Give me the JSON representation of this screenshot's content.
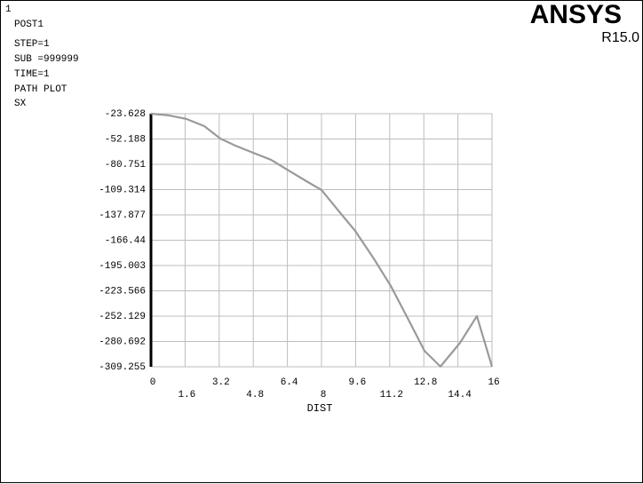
{
  "window_number": "1",
  "info": [
    "POST1",
    "STEP=1",
    "SUB =999999",
    "TIME=1",
    "PATH PLOT",
    "SX"
  ],
  "logo": "ANSYS",
  "version": "R15.0",
  "chart_data": {
    "type": "line",
    "xlabel": "DIST",
    "color": "#9a9a9a",
    "grid": true,
    "x": [
      0,
      0.83,
      1.67,
      2.5,
      3.25,
      3.96,
      4.79,
      5.63,
      6.46,
      7.29,
      8,
      8.75,
      9.58,
      10.42,
      11.25,
      12.08,
      12.83,
      13.58,
      14.5,
      15.29,
      16
    ],
    "values": [
      -23.6,
      -25.6,
      -29.6,
      -37.7,
      -51.7,
      -59.7,
      -67.7,
      -75.7,
      -87.8,
      -99.8,
      -109.8,
      -131.8,
      -155.9,
      -186,
      -218,
      -256.1,
      -291.2,
      -309,
      -282.2,
      -252.1,
      -309.2
    ],
    "xlim": [
      0,
      16
    ],
    "ylim": [
      -309.255,
      -23.628
    ],
    "xticks": [
      0,
      1.6,
      3.2,
      4.8,
      6.4,
      8,
      9.6,
      11.2,
      12.8,
      14.4,
      16
    ],
    "yticks": [
      -23.628,
      -52.188,
      -80.751,
      -109.314,
      -137.877,
      -166.44,
      -195.003,
      -223.566,
      -252.129,
      -280.692,
      -309.255
    ]
  }
}
